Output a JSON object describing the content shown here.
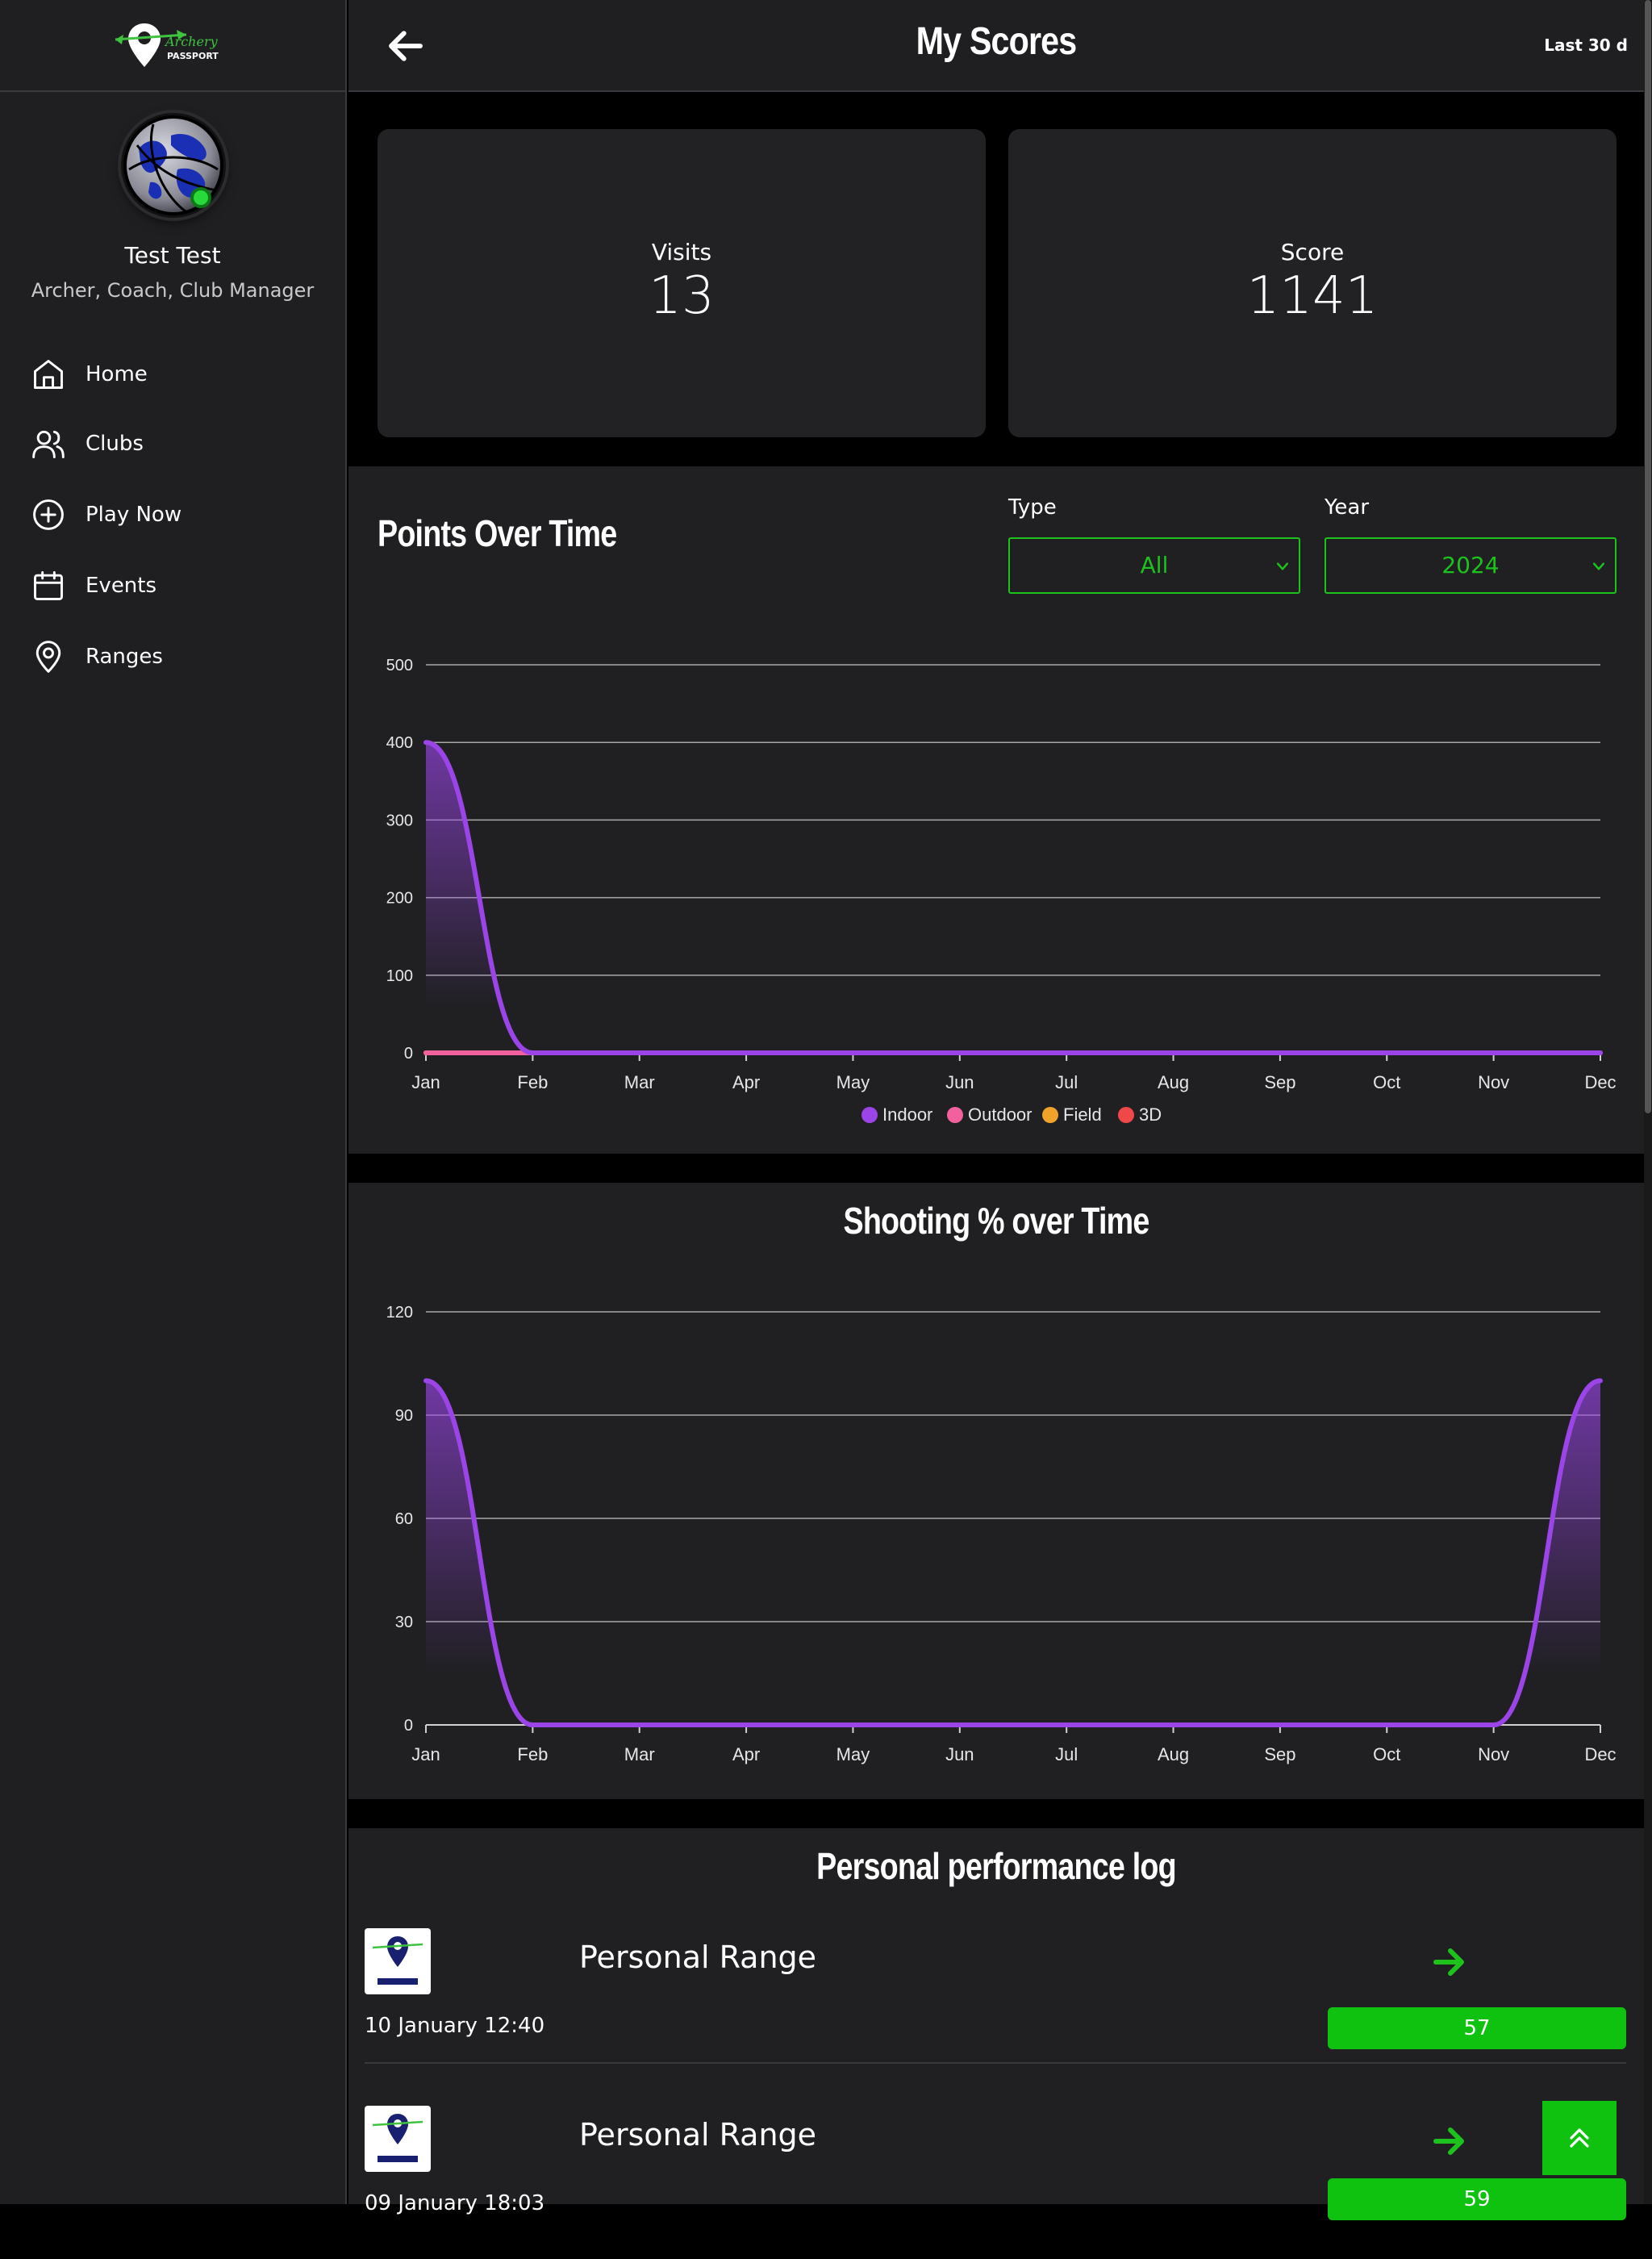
{
  "brand": {
    "logo_word1": "Archery",
    "logo_word2": "PASSPORT"
  },
  "user": {
    "name": "Test Test",
    "roles": "Archer, Coach, Club Manager"
  },
  "nav": [
    {
      "label": "Home",
      "icon": "home-icon"
    },
    {
      "label": "Clubs",
      "icon": "users-icon"
    },
    {
      "label": "Play Now",
      "icon": "plus-circle-icon"
    },
    {
      "label": "Events",
      "icon": "calendar-icon"
    },
    {
      "label": "Ranges",
      "icon": "map-pin-icon"
    }
  ],
  "header": {
    "title": "My Scores",
    "range": "Last 30 d"
  },
  "stats": {
    "visits": {
      "label": "Visits",
      "value": "13"
    },
    "score": {
      "label": "Score",
      "value": "1141"
    }
  },
  "points_panel": {
    "title": "Points Over Time",
    "type_label": "Type",
    "type_value": "All",
    "year_label": "Year",
    "year_value": "2024"
  },
  "shooting_panel": {
    "title": "Shooting % over Time"
  },
  "chart_data": [
    {
      "type": "area",
      "title": "Points Over Time",
      "categories": [
        "Jan",
        "Feb",
        "Mar",
        "Apr",
        "May",
        "Jun",
        "Jul",
        "Aug",
        "Sep",
        "Oct",
        "Nov",
        "Dec"
      ],
      "yticks": [
        0,
        100,
        200,
        300,
        400,
        500
      ],
      "ylim": [
        0,
        500
      ],
      "grid": true,
      "legend": "bottom",
      "series": [
        {
          "name": "Indoor",
          "color": "#9b45e8",
          "values": [
            400,
            0,
            0,
            0,
            0,
            0,
            0,
            0,
            0,
            0,
            0,
            0
          ]
        },
        {
          "name": "Outdoor",
          "color": "#f2609e",
          "values": [
            0,
            0,
            0,
            0,
            0,
            0,
            0,
            0,
            0,
            0,
            0,
            0
          ]
        },
        {
          "name": "Field",
          "color": "#f0a32a",
          "values": [
            0,
            0,
            0,
            0,
            0,
            0,
            0,
            0,
            0,
            0,
            0,
            0
          ]
        },
        {
          "name": "3D",
          "color": "#f04848",
          "values": [
            0,
            0,
            0,
            0,
            0,
            0,
            0,
            0,
            0,
            0,
            0,
            0
          ]
        }
      ]
    },
    {
      "type": "area",
      "title": "Shooting % over Time",
      "categories": [
        "Jan",
        "Feb",
        "Mar",
        "Apr",
        "May",
        "Jun",
        "Jul",
        "Aug",
        "Sep",
        "Oct",
        "Nov",
        "Dec"
      ],
      "yticks": [
        0,
        30,
        60,
        90,
        120
      ],
      "ylim": [
        0,
        120
      ],
      "grid": true,
      "series": [
        {
          "name": "",
          "color": "#9b45e8",
          "values": [
            100,
            0,
            0,
            0,
            0,
            0,
            0,
            0,
            0,
            0,
            0,
            100
          ]
        }
      ]
    }
  ],
  "log": {
    "title": "Personal performance log",
    "entries": [
      {
        "range": "Personal Range",
        "date": "10 January 12:40",
        "score": "57"
      },
      {
        "range": "Personal Range",
        "date": "09 January 18:03",
        "score": "59"
      }
    ]
  }
}
